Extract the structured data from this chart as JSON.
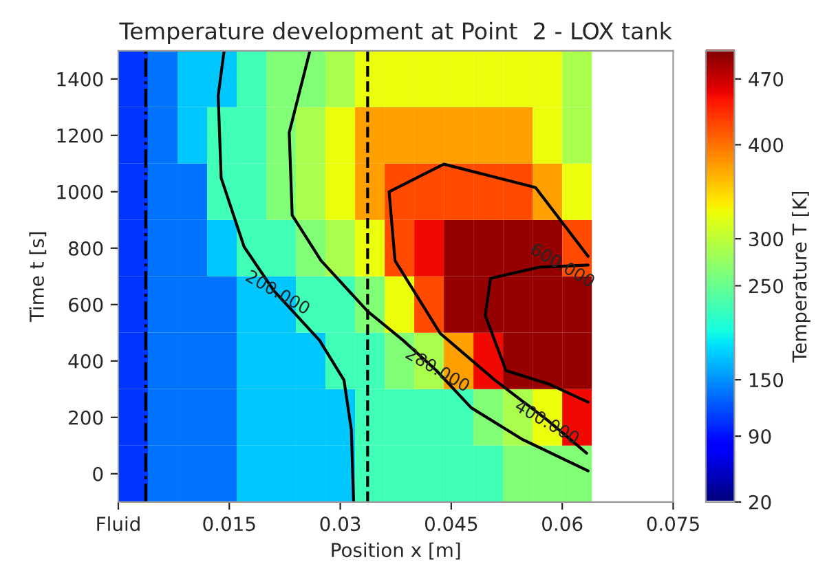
{
  "chart_data": {
    "type": "heatmap",
    "title": "Temperature development at Point  2 - LOX tank",
    "xlabel": "Position x [m]",
    "ylabel": "Time t [s]",
    "clabel": "Temperature T [K]",
    "x": [
      0.002,
      0.006,
      0.01,
      0.014,
      0.018,
      0.022,
      0.026,
      0.03,
      0.034,
      0.038,
      0.042,
      0.046,
      0.05,
      0.054,
      0.058,
      0.062
    ],
    "y": [
      0,
      200,
      400,
      600,
      800,
      1000,
      1200,
      1400
    ],
    "cells": [
      [
        105,
        135,
        135,
        135,
        175,
        175,
        175,
        175,
        225,
        225,
        225,
        225,
        225,
        262,
        262,
        262
      ],
      [
        105,
        135,
        135,
        135,
        175,
        175,
        175,
        175,
        225,
        225,
        225,
        225,
        262,
        288,
        325,
        452
      ],
      [
        105,
        135,
        135,
        135,
        175,
        175,
        175,
        225,
        225,
        262,
        288,
        375,
        452,
        490,
        490,
        490
      ],
      [
        105,
        135,
        135,
        135,
        175,
        175,
        225,
        225,
        262,
        325,
        418,
        490,
        490,
        490,
        490,
        490
      ],
      [
        105,
        135,
        135,
        175,
        225,
        225,
        262,
        288,
        325,
        418,
        452,
        490,
        490,
        490,
        490,
        418
      ],
      [
        105,
        135,
        135,
        225,
        225,
        262,
        288,
        325,
        375,
        418,
        418,
        418,
        418,
        418,
        375,
        325
      ],
      [
        105,
        135,
        175,
        225,
        225,
        262,
        288,
        325,
        375,
        375,
        375,
        375,
        375,
        375,
        325,
        288
      ],
      [
        105,
        135,
        175,
        175,
        225,
        262,
        262,
        288,
        325,
        325,
        325,
        325,
        325,
        325,
        325,
        288
      ]
    ],
    "clim": [
      20,
      500
    ],
    "cticks": [
      20,
      90,
      150,
      250,
      300,
      400,
      470
    ],
    "xlim": [
      0,
      0.075
    ],
    "xticks": [
      {
        "value": 0,
        "label": "Fluid"
      },
      0.015,
      0.03,
      0.045,
      0.06,
      0.075
    ],
    "ylim": [
      -100,
      1500
    ],
    "yticks": [
      0,
      200,
      400,
      600,
      800,
      1000,
      1200,
      1400
    ],
    "series": [
      {
        "type": "line",
        "color": "#000000",
        "x": [
          0.0143,
          0.0135,
          0.0139,
          0.017,
          0.021,
          0.0272,
          0.0305,
          0.0315,
          0.0318
        ],
        "values": [
          1500,
          1341,
          1049,
          805,
          650,
          473,
          332,
          156,
          -100
        ]
      },
      {
        "type": "line",
        "color": "#000000",
        "x": [
          0.0259,
          0.0231,
          0.0235,
          0.0274,
          0.0337,
          0.0385,
          0.043,
          0.0477,
          0.0546,
          0.0635
        ],
        "values": [
          1500,
          1210,
          917,
          756,
          576,
          473,
          366,
          234,
          122,
          10
        ]
      },
      {
        "type": "line",
        "color": "#000000",
        "x": [
          0.0635,
          0.0564,
          0.044,
          0.0366,
          0.0374,
          0.0435,
          0.0509,
          0.058,
          0.0633
        ],
        "values": [
          771,
          1015,
          1098,
          1000,
          756,
          498,
          332,
          190,
          73
        ]
      },
      {
        "type": "line",
        "color": "#000000",
        "x": [
          0.0635,
          0.0568,
          0.0503,
          0.0496,
          0.0524,
          0.0583,
          0.0635
        ],
        "values": [
          740,
          732,
          693,
          561,
          366,
          317,
          254
        ]
      }
    ],
    "ref_lines": [
      {
        "axis": "x",
        "value": 0.0037,
        "color": "#000000",
        "line_style": "dashdot"
      },
      {
        "axis": "x",
        "value": 0.0337,
        "color": "#000000",
        "line_style": "dashed"
      }
    ],
    "annotations": [
      {
        "text": "200.000",
        "x": 0.0215,
        "y": 640
      },
      {
        "text": "280.000",
        "x": 0.0431,
        "y": 366
      },
      {
        "text": "400.000",
        "x": 0.0579,
        "y": 180
      },
      {
        "text": "600.000",
        "x": 0.06,
        "y": 736
      }
    ]
  }
}
